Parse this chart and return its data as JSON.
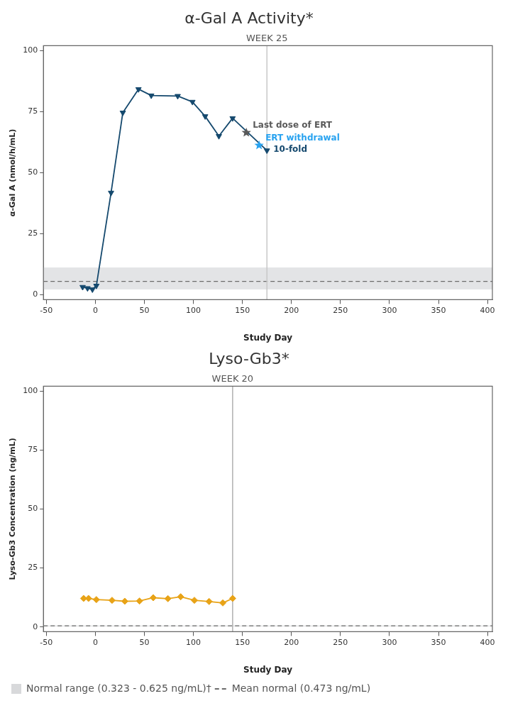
{
  "chart_data": [
    {
      "type": "line",
      "title": "α-Gal A Activity*",
      "xlabel": "Study Day",
      "ylabel": "α-Gal A (nmol/h/mL)",
      "xlim": [
        -53,
        405
      ],
      "xticks": [
        -50,
        0,
        50,
        100,
        150,
        200,
        250,
        300,
        350,
        400
      ],
      "ylim": [
        -2,
        102
      ],
      "yticks": [
        0,
        25,
        50,
        75,
        100
      ],
      "grid": false,
      "legend": false,
      "series": [
        {
          "color": "#15496e",
          "marker": "triangle",
          "x": [
            -13,
            -8,
            -3,
            1,
            16,
            28,
            44,
            57,
            84,
            99,
            112,
            126,
            140,
            175
          ],
          "values": [
            3.2,
            2.7,
            2.2,
            3.7,
            41.8,
            74.6,
            84.2,
            81.6,
            81.4,
            79,
            73.1,
            65,
            72.3,
            59.1
          ]
        },
        {
          "type": "scatter",
          "color": "#5a5a5a",
          "marker": "star",
          "x": [
            154
          ],
          "values": [
            66.4
          ]
        },
        {
          "type": "scatter",
          "color": "#29a3f0",
          "marker": "star",
          "x": [
            167
          ],
          "values": [
            61.2
          ]
        }
      ],
      "bands": [
        {
          "axis": "y",
          "from": 2.2,
          "to": 11.2,
          "color": "#e3e4e6"
        }
      ],
      "ref_lines": [
        {
          "axis": "y",
          "value": 5.5,
          "color": "#6b6b6b",
          "line_style": "dashed"
        },
        {
          "axis": "x",
          "value": 175,
          "label": "WEEK 25",
          "color": "#c8c8c8",
          "line_style": "solid"
        }
      ],
      "annotations": [
        {
          "text": "Last dose of ERT",
          "x": 154,
          "y": 66.4
        },
        {
          "text": "ERT withdrawal",
          "x": 167,
          "y": 61.2
        },
        {
          "text": "10-fold",
          "x": 175,
          "y": 59.1
        }
      ]
    },
    {
      "type": "line",
      "title": "Lyso-Gb3*",
      "xlabel": "Study Day",
      "ylabel": "Lyso-Gb3 Concentration (ng/mL)",
      "xlim": [
        -53,
        405
      ],
      "xticks": [
        -50,
        0,
        50,
        100,
        150,
        200,
        250,
        300,
        350,
        400
      ],
      "ylim": [
        -2,
        102
      ],
      "yticks": [
        0,
        25,
        50,
        75,
        100
      ],
      "grid": false,
      "legend": "bottom",
      "series": [
        {
          "color": "#e8a317",
          "marker": "diamond",
          "x": [
            -12,
            -7,
            1,
            17,
            30,
            45,
            59,
            74,
            87,
            101,
            116,
            130,
            140
          ],
          "values": [
            12.1,
            12.1,
            11.6,
            11.3,
            10.9,
            11,
            12.4,
            12,
            12.8,
            11.3,
            10.8,
            10.2,
            12.1
          ]
        }
      ],
      "bands": [
        {
          "axis": "y",
          "from": 0.323,
          "to": 0.625,
          "color": "#d8d9db",
          "label": "Normal range (0.323 - 0.625 ng/mL)†"
        }
      ],
      "ref_lines": [
        {
          "axis": "y",
          "value": 0.473,
          "color": "#6b6b6b",
          "line_style": "dashed",
          "label": "Mean normal (0.473 ng/mL)"
        },
        {
          "axis": "x",
          "value": 140,
          "label": "WEEK 20",
          "color": "#b0b0b0",
          "line_style": "solid"
        }
      ]
    }
  ]
}
